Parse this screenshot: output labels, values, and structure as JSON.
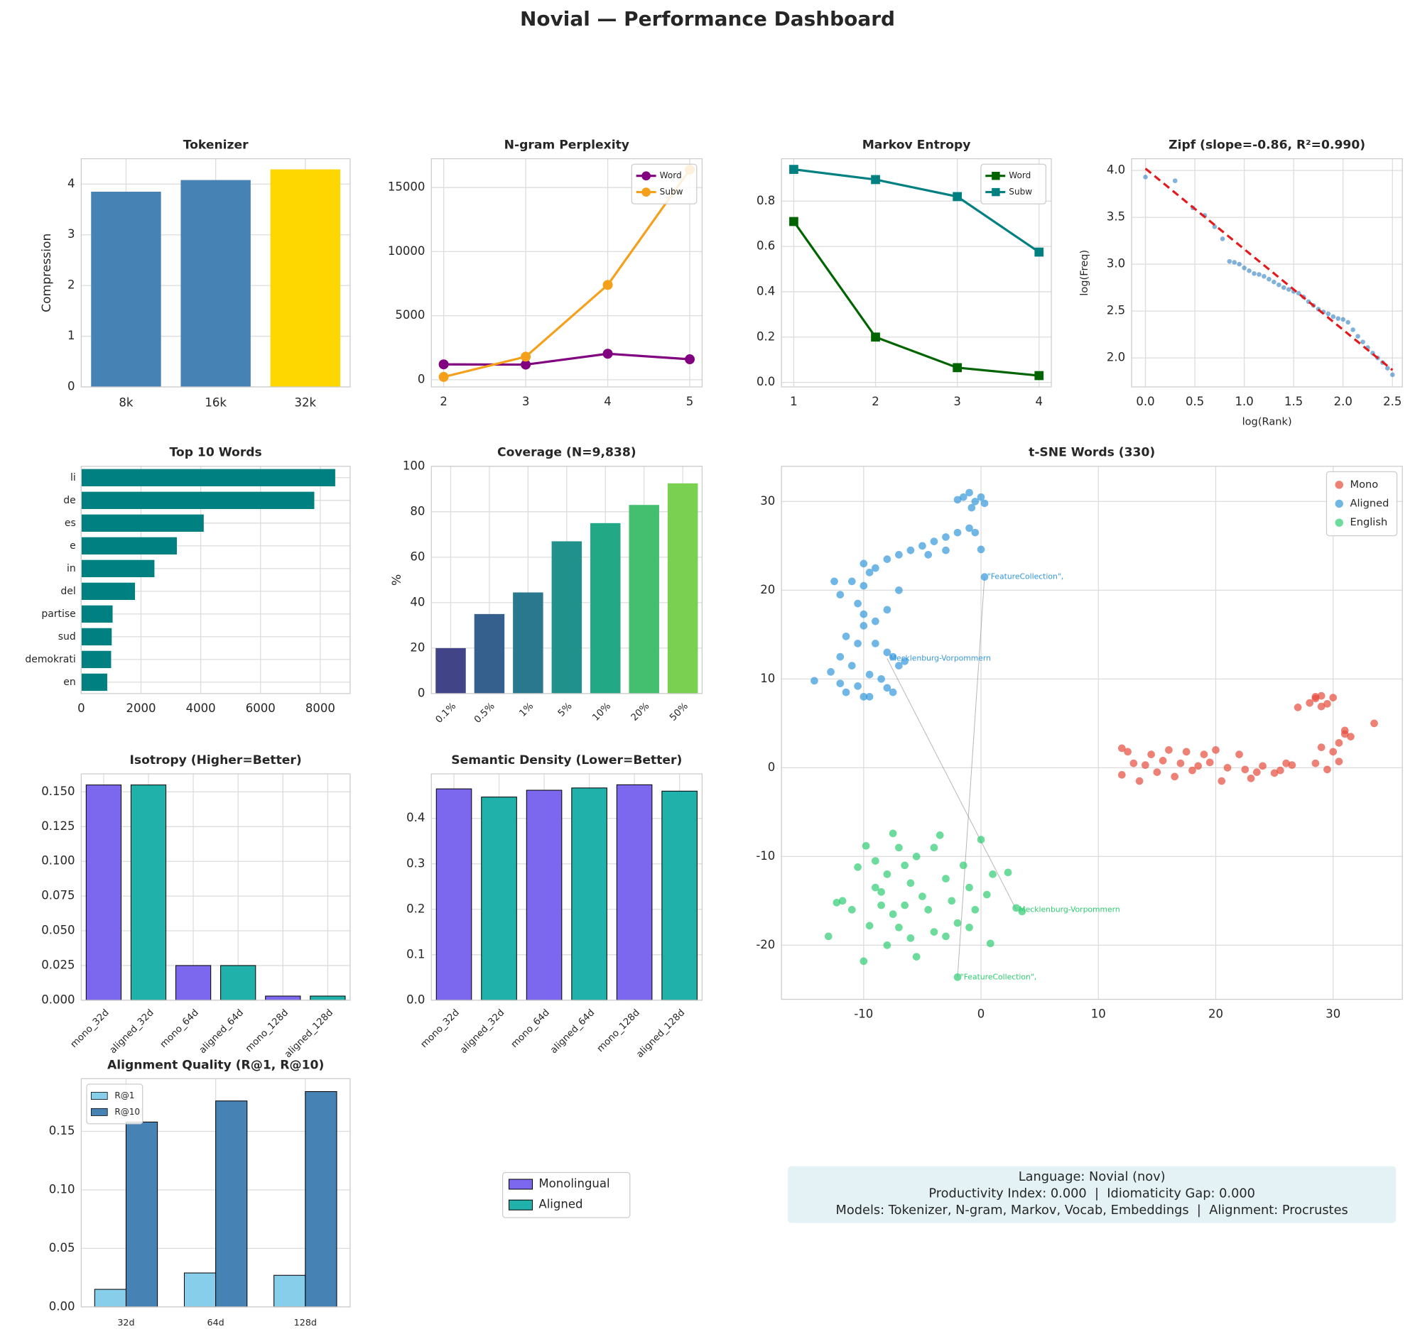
{
  "title": "Novial — Performance Dashboard",
  "chart_data": [
    {
      "type": "bar",
      "title": "Tokenizer",
      "ylabel": "Compression",
      "categories": [
        "8k",
        "16k",
        "32k"
      ],
      "values": [
        3.85,
        4.08,
        4.29
      ],
      "colors": [
        "#4682b4",
        "#4682b4",
        "#ffd700"
      ],
      "ylim": [
        0,
        4.5
      ],
      "yticks": [
        0,
        1,
        2,
        3,
        4
      ],
      "grid": true
    },
    {
      "type": "line",
      "title": "N-gram Perplexity",
      "x": [
        2,
        3,
        4,
        5
      ],
      "series": [
        {
          "name": "Word",
          "color": "#800080",
          "marker": "o",
          "values": [
            1200,
            1180,
            2030,
            1600
          ]
        },
        {
          "name": "Subw",
          "color": "#f5a01a",
          "marker": "o",
          "values": [
            220,
            1800,
            7400,
            16400
          ]
        }
      ],
      "xlim": [
        1.85,
        5.15
      ],
      "xticks": [
        2,
        3,
        4,
        5
      ],
      "ylim": [
        -560,
        17250
      ],
      "yticks": [
        0,
        5000,
        10000,
        15000
      ],
      "legend": "upper right",
      "grid": true
    },
    {
      "type": "line",
      "title": "Markov Entropy",
      "x": [
        1,
        2,
        3,
        4
      ],
      "series": [
        {
          "name": "Word",
          "color": "#006400",
          "marker": "s",
          "values": [
            0.71,
            0.2,
            0.065,
            0.03
          ]
        },
        {
          "name": "Subw",
          "color": "#008080",
          "marker": "s",
          "values": [
            0.94,
            0.895,
            0.82,
            0.575
          ]
        }
      ],
      "xlim": [
        0.85,
        4.15
      ],
      "xticks": [
        1,
        2,
        3,
        4
      ],
      "ylim": [
        -0.02,
        0.987
      ],
      "yticks": [
        {
          "value": 0,
          "label": "0.0"
        },
        0.2,
        0.4,
        0.6,
        0.8
      ],
      "legend": "upper right",
      "grid": true
    },
    {
      "type": "scatter",
      "title": "Zipf (slope=-0.86, R²=0.990)",
      "xlabel": "log(Rank)",
      "ylabel": "log(Freq)",
      "series": [
        {
          "color": "#2f7fc1",
          "x": [
            0,
            0.3,
            0.48,
            0.6,
            0.7,
            0.78,
            0.85,
            0.9,
            0.95,
            1.0,
            1.05,
            1.1,
            1.15,
            1.2,
            1.25,
            1.3,
            1.35,
            1.4,
            1.45,
            1.5,
            1.55,
            1.6,
            1.65,
            1.7,
            1.75,
            1.8,
            1.85,
            1.9,
            1.95,
            2.0,
            2.05,
            2.1,
            2.15,
            2.2,
            2.25,
            2.3,
            2.35,
            2.4,
            2.45,
            2.5
          ],
          "y": [
            3.93,
            3.89,
            3.6,
            3.52,
            3.4,
            3.27,
            3.03,
            3.02,
            3.0,
            2.96,
            2.93,
            2.9,
            2.89,
            2.87,
            2.84,
            2.81,
            2.78,
            2.75,
            2.73,
            2.71,
            2.69,
            2.65,
            2.6,
            2.56,
            2.52,
            2.49,
            2.47,
            2.44,
            2.42,
            2.41,
            2.38,
            2.3,
            2.23,
            2.17,
            2.11,
            2.05,
            2.0,
            1.95,
            1.89,
            1.82
          ]
        }
      ],
      "fit": {
        "color": "#e31a1c",
        "x": [
          0,
          2.5
        ],
        "y": [
          4.02,
          1.87
        ]
      },
      "xlim": [
        -0.14,
        2.6
      ],
      "xticks": [
        {
          "value": 0,
          "label": "0.0"
        },
        0.5,
        {
          "value": 1,
          "label": "1.0"
        },
        1.5,
        {
          "value": 2,
          "label": "2.0"
        },
        2.5
      ],
      "ylim": [
        1.69,
        4.125
      ],
      "yticks": [
        {
          "value": 2,
          "label": "2.0"
        },
        2.5,
        {
          "value": 3,
          "label": "3.0"
        },
        3.5,
        {
          "value": 4,
          "label": "4.0"
        }
      ],
      "grid": true
    },
    {
      "type": "barh",
      "title": "Top 10 Words",
      "categories": [
        "li",
        "de",
        "es",
        "e",
        "in",
        "del",
        "partise",
        "sud",
        "demokrati",
        "en"
      ],
      "values": [
        8500,
        7800,
        4100,
        3200,
        2450,
        1800,
        1050,
        1020,
        1000,
        870
      ],
      "color": "#008080",
      "xlim": [
        0,
        9000
      ],
      "xticks": [
        0,
        2000,
        4000,
        6000,
        8000
      ],
      "grid": true
    },
    {
      "type": "bar",
      "title": "Coverage (N=9,838)",
      "ylabel": "%",
      "categories": [
        "0.1%",
        "0.5%",
        "1%",
        "5%",
        "10%",
        "20%",
        "50%"
      ],
      "values": [
        20,
        35,
        44.5,
        67,
        75,
        83,
        92.5
      ],
      "colors": [
        "#414487",
        "#355f8d",
        "#2a788e",
        "#21918c",
        "#22a884",
        "#44bf70",
        "#7ad151"
      ],
      "ylim": [
        0,
        100
      ],
      "yticks": [
        0,
        20,
        40,
        60,
        80,
        100
      ],
      "x_label_rotation": 45,
      "grid": true
    },
    {
      "type": "scatter",
      "title": "t-SNE Words (330)",
      "series": [
        {
          "name": "Mono",
          "color": "#e74c3c",
          "x": [
            12,
            12.5,
            12,
            13,
            13.5,
            14,
            14.5,
            15,
            15.5,
            16,
            16.5,
            17,
            17.5,
            18,
            18.5,
            19,
            19.5,
            20,
            20.5,
            21,
            22,
            22.5,
            23,
            23.5,
            24,
            25,
            25.5,
            26,
            26.5,
            27,
            28,
            28.5,
            29,
            29.5,
            30,
            29,
            28.5,
            30,
            31,
            31.5,
            30.5,
            33.5,
            29.5,
            30.5,
            31,
            28.5,
            29
          ],
          "y": [
            2.2,
            1.8,
            -0.8,
            0.5,
            -1.5,
            0.3,
            1.5,
            -0.5,
            0.8,
            2,
            -1,
            0.5,
            1.8,
            -0.3,
            0.2,
            1.5,
            0.6,
            2,
            -1.5,
            0,
            1.5,
            -0.2,
            -1.2,
            -0.5,
            0.2,
            -0.6,
            -0.3,
            0.5,
            0.3,
            6.8,
            7.3,
            7.8,
            8.1,
            7.2,
            7.9,
            2.3,
            0.5,
            1.8,
            3.8,
            3.5,
            2.8,
            5,
            -0.2,
            0.7,
            4.2,
            8,
            6.9
          ]
        },
        {
          "name": "Aligned",
          "color": "#3498db",
          "x": [
            -14.2,
            -12.8,
            -12,
            -11.5,
            -10.5,
            -10,
            -9.5,
            -11,
            -12,
            -11.5,
            -10.5,
            -10,
            -9,
            -8,
            -7.5,
            -8.5,
            -7,
            -6.5,
            -8,
            -7.5,
            -10,
            -9,
            -8,
            -10.5,
            -12,
            -11,
            -10,
            -9.5,
            -8,
            -7,
            -6,
            -5,
            -4,
            -3,
            -2,
            -1,
            -0.5,
            -4.5,
            -3,
            -7,
            -10,
            -9,
            -1.5,
            -1,
            -0.5,
            0,
            0.3,
            -0.8,
            -2,
            0,
            0.3,
            -9.5,
            -12.5
          ],
          "y": [
            9.8,
            10.8,
            9.5,
            8.5,
            9.2,
            8,
            10.5,
            11.5,
            12.5,
            14.8,
            14,
            16,
            14,
            13,
            12.5,
            10,
            11.5,
            12,
            9,
            8.5,
            17.3,
            16.5,
            17.8,
            18.5,
            19.5,
            21,
            20.5,
            22,
            23.5,
            24,
            24.5,
            25,
            25.5,
            26,
            26.5,
            27,
            26.5,
            24,
            24.5,
            20,
            23,
            22.5,
            30.5,
            31,
            30,
            30.5,
            29.8,
            29.3,
            30.2,
            24.6,
            21.5,
            8,
            21
          ]
        },
        {
          "name": "English",
          "color": "#2ecc71",
          "x": [
            -13,
            -12.3,
            -11.8,
            -11,
            -10,
            -9.5,
            -10.5,
            -9.8,
            -9,
            -8.5,
            -8,
            -7.5,
            -7,
            -6.5,
            -6,
            -5.5,
            -5,
            -4.5,
            -4,
            -3.5,
            -3,
            -2.5,
            -2,
            -1.5,
            -1,
            -0.5,
            0,
            0.5,
            1,
            2.3,
            0.8,
            -2,
            3.5,
            3,
            -6,
            -7,
            -8,
            -5.5,
            -4,
            -3,
            -1,
            -7.5,
            -8.5,
            -6.5,
            -9
          ],
          "y": [
            -19,
            -15.2,
            -15,
            -16,
            -21.8,
            -17.8,
            -11.2,
            -8.8,
            -13.5,
            -15.5,
            -12,
            -7.4,
            -9,
            -11,
            -13,
            -10,
            -14.5,
            -16,
            -9,
            -7.6,
            -12.5,
            -15,
            -17.5,
            -11,
            -13.5,
            -16,
            -8.1,
            -14.3,
            -12,
            -11.8,
            -19.8,
            -23.6,
            -16.2,
            -15.8,
            -19.2,
            -18,
            -20,
            -21.3,
            -18.5,
            -19,
            -18,
            -16.5,
            -14,
            -15.5,
            -10.5
          ]
        }
      ],
      "annotations": [
        {
          "text": "\"FeatureCollection\",",
          "x": 0.3,
          "y": 21.5,
          "color": "#3498db"
        },
        {
          "text": "Mecklenburg-Vorpommern",
          "x": -8,
          "y": 12.3,
          "color": "#3498db"
        },
        {
          "text": "\"FeatureCollection\",",
          "x": -2,
          "y": -23.6,
          "color": "#2ecc71"
        },
        {
          "text": "Mecklenburg-Vorpommern",
          "x": 3,
          "y": -16,
          "color": "#2ecc71"
        }
      ],
      "links": [
        [
          0,
          2
        ],
        [
          1,
          3
        ]
      ],
      "xlim": [
        -17,
        35.9
      ],
      "xticks": [
        -10,
        0,
        10,
        20,
        30
      ],
      "ylim": [
        -26.1,
        33.97
      ],
      "yticks": [
        -20,
        -10,
        0,
        10,
        20,
        30
      ],
      "legend": "upper right",
      "grid": true
    },
    {
      "type": "bar",
      "title": "Isotropy (Higher=Better)",
      "categories": [
        "mono_32d",
        "aligned_32d",
        "mono_64d",
        "aligned_64d",
        "mono_128d",
        "aligned_128d"
      ],
      "values": [
        0.155,
        0.155,
        0.025,
        0.025,
        0.003,
        0.003
      ],
      "colors": [
        "#7b68ee",
        "#20b2aa",
        "#7b68ee",
        "#20b2aa",
        "#7b68ee",
        "#20b2aa"
      ],
      "edgecolor": "#000000",
      "ylim": [
        0,
        0.163
      ],
      "yticks": [
        {
          "value": 0,
          "label": "0.000"
        },
        0.025,
        {
          "value": 0.05,
          "label": "0.050"
        },
        0.075,
        {
          "value": 0.1,
          "label": "0.100"
        },
        0.125,
        {
          "value": 0.15,
          "label": "0.150"
        }
      ],
      "x_label_rotation": 45,
      "grid": true
    },
    {
      "type": "bar",
      "title": "Semantic Density (Lower=Better)",
      "categories": [
        "mono_32d",
        "aligned_32d",
        "mono_64d",
        "aligned_64d",
        "mono_128d",
        "aligned_128d"
      ],
      "values": [
        0.465,
        0.447,
        0.462,
        0.467,
        0.474,
        0.46
      ],
      "colors": [
        "#7b68ee",
        "#20b2aa",
        "#7b68ee",
        "#20b2aa",
        "#7b68ee",
        "#20b2aa"
      ],
      "edgecolor": "#000000",
      "ylim": [
        0,
        0.498
      ],
      "yticks": [
        {
          "value": 0,
          "label": "0.0"
        },
        0.1,
        0.2,
        0.3,
        0.4
      ],
      "x_label_rotation": 45,
      "grid": true
    },
    {
      "type": "grouped_bar",
      "title": "Alignment Quality (R@1, R@10)",
      "categories": [
        "32d",
        "64d",
        "128d"
      ],
      "series": [
        {
          "name": "R@1",
          "color": "#87ceeb",
          "values": [
            0.015,
            0.029,
            0.027
          ]
        },
        {
          "name": "R@10",
          "color": "#4682b4",
          "values": [
            0.158,
            0.176,
            0.184
          ]
        }
      ],
      "edgecolor": "#000000",
      "ylim": [
        0,
        0.195
      ],
      "yticks": [
        {
          "value": 0,
          "label": "0.00"
        },
        0.05,
        {
          "value": 0.1,
          "label": "0.10"
        },
        0.15
      ],
      "legend": "upper left",
      "grid": true
    }
  ],
  "shared_legend": [
    {
      "name": "Monolingual",
      "color": "#7b68ee"
    },
    {
      "name": "Aligned",
      "color": "#20b2aa"
    }
  ],
  "info": [
    "Language: Novial (nov)",
    "Productivity Index: 0.000  |  Idiomaticity Gap: 0.000",
    "Models: Tokenizer, N-gram, Markov, Vocab, Embeddings  |  Alignment: Procrustes"
  ]
}
